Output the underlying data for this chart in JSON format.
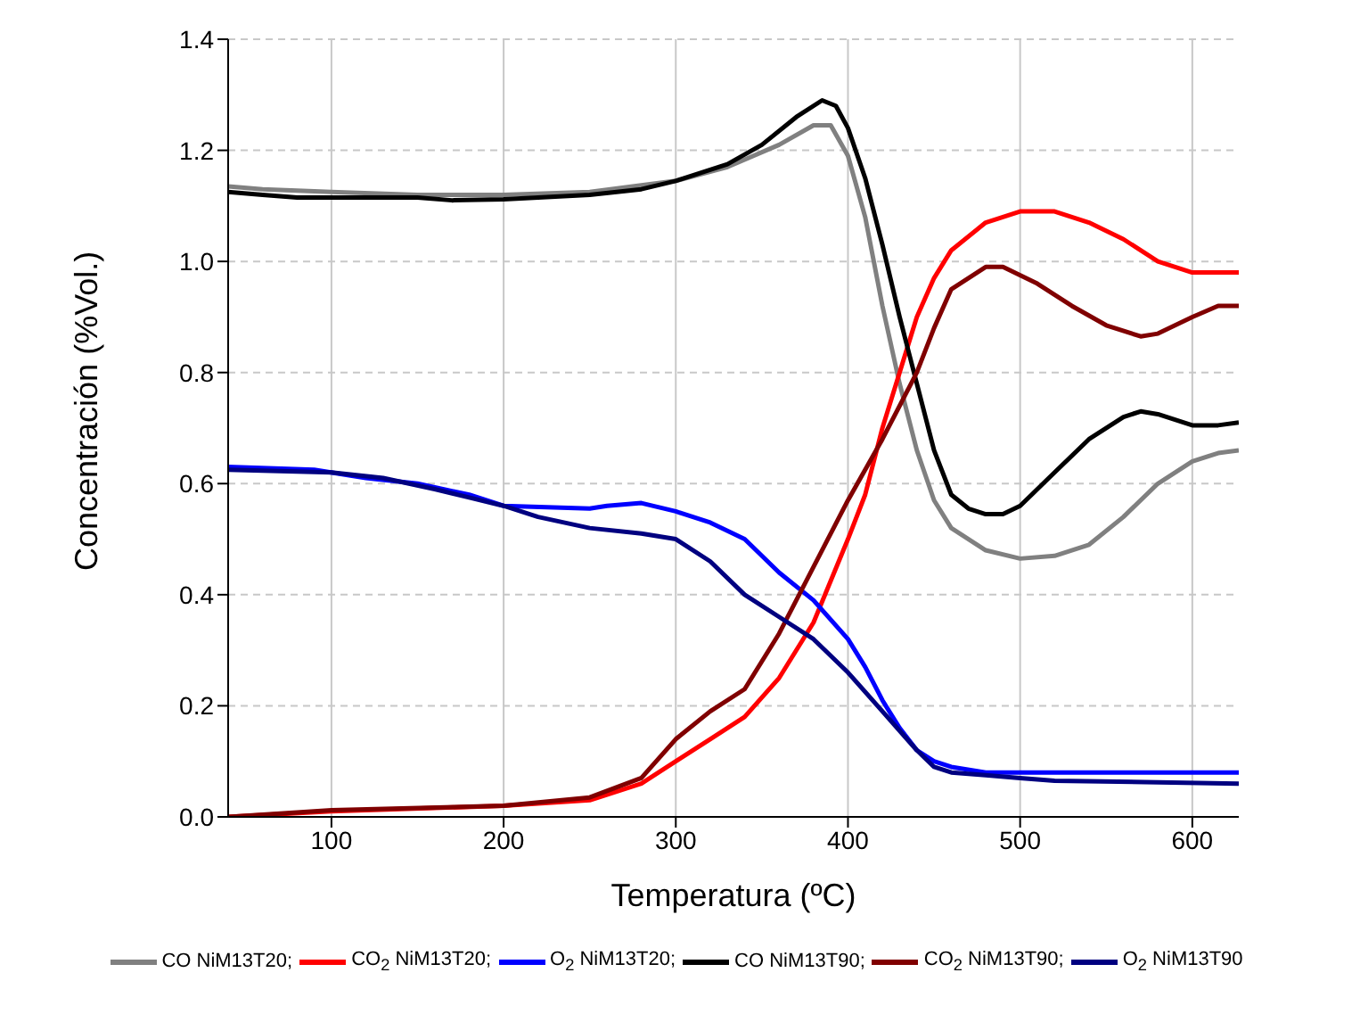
{
  "chart_data": {
    "type": "line",
    "xlabel": "Temperatura (ºC)",
    "ylabel": "Concentración (%Vol.)",
    "xlim": [
      40,
      627
    ],
    "xticks": [
      100,
      200,
      300,
      400,
      500,
      600
    ],
    "ylim": [
      0,
      1.4
    ],
    "yticks": [
      {
        "value": 0,
        "label": "0.0"
      },
      {
        "value": 0.2,
        "label": "0.2"
      },
      {
        "value": 0.4,
        "label": "0.4"
      },
      {
        "value": 0.6,
        "label": "0.6"
      },
      {
        "value": 0.8,
        "label": "0.8"
      },
      {
        "value": 1,
        "label": "1.0"
      },
      {
        "value": 1.2,
        "label": "1.2"
      },
      {
        "value": 1.4,
        "label": "1.4"
      }
    ],
    "grid": true,
    "legend": "bottom",
    "marker": "none",
    "line_style": "solid",
    "series": [
      {
        "name": "CO NiM13T20;",
        "color": "#808080",
        "x": [
          40,
          60,
          100,
          150,
          200,
          250,
          300,
          330,
          360,
          380,
          390,
          400,
          410,
          420,
          430,
          440,
          450,
          460,
          480,
          500,
          520,
          540,
          560,
          580,
          600,
          615,
          627
        ],
        "values": [
          1.135,
          1.13,
          1.125,
          1.12,
          1.12,
          1.125,
          1.145,
          1.17,
          1.21,
          1.245,
          1.245,
          1.19,
          1.08,
          0.92,
          0.78,
          0.66,
          0.57,
          0.52,
          0.48,
          0.465,
          0.47,
          0.49,
          0.54,
          0.6,
          0.64,
          0.655,
          0.66
        ]
      },
      {
        "name": "CO$_{2}$ NiM13T20;",
        "color": "#ff0000",
        "x": [
          40,
          100,
          200,
          250,
          280,
          300,
          320,
          340,
          360,
          380,
          400,
          410,
          420,
          430,
          440,
          450,
          460,
          480,
          500,
          520,
          540,
          560,
          580,
          600,
          627
        ],
        "values": [
          0,
          0.01,
          0.02,
          0.03,
          0.06,
          0.1,
          0.14,
          0.18,
          0.25,
          0.35,
          0.5,
          0.58,
          0.7,
          0.8,
          0.9,
          0.97,
          1.02,
          1.07,
          1.09,
          1.09,
          1.07,
          1.04,
          1,
          0.98,
          0.98
        ]
      },
      {
        "name": "O$_{2}$ NiM13T20;",
        "color": "#0000ff",
        "x": [
          40,
          90,
          120,
          150,
          180,
          200,
          250,
          260,
          280,
          300,
          320,
          340,
          360,
          380,
          400,
          410,
          420,
          430,
          440,
          450,
          460,
          480,
          627
        ],
        "values": [
          0.63,
          0.625,
          0.61,
          0.6,
          0.58,
          0.56,
          0.555,
          0.56,
          0.565,
          0.55,
          0.53,
          0.5,
          0.44,
          0.39,
          0.32,
          0.27,
          0.21,
          0.16,
          0.12,
          0.1,
          0.09,
          0.08,
          0.08
        ]
      },
      {
        "name": "CO NiM13T90;",
        "color": "#000000",
        "x": [
          40,
          60,
          80,
          100,
          150,
          170,
          200,
          250,
          280,
          300,
          330,
          350,
          370,
          385,
          393,
          400,
          410,
          420,
          430,
          440,
          450,
          460,
          470,
          480,
          490,
          500,
          520,
          540,
          560,
          570,
          580,
          600,
          615,
          627
        ],
        "values": [
          1.125,
          1.12,
          1.115,
          1.115,
          1.115,
          1.11,
          1.112,
          1.12,
          1.13,
          1.145,
          1.175,
          1.21,
          1.26,
          1.29,
          1.28,
          1.24,
          1.15,
          1.03,
          0.9,
          0.78,
          0.66,
          0.58,
          0.555,
          0.545,
          0.545,
          0.56,
          0.62,
          0.68,
          0.72,
          0.73,
          0.725,
          0.705,
          0.705,
          0.71
        ]
      },
      {
        "name": "CO$_{2}$ NiM13T90;",
        "color": "#800000",
        "x": [
          40,
          100,
          200,
          250,
          280,
          300,
          320,
          340,
          360,
          380,
          400,
          420,
          440,
          450,
          460,
          480,
          490,
          510,
          530,
          550,
          570,
          580,
          600,
          615,
          627
        ],
        "values": [
          0,
          0.012,
          0.02,
          0.035,
          0.07,
          0.14,
          0.19,
          0.23,
          0.33,
          0.45,
          0.57,
          0.68,
          0.8,
          0.88,
          0.95,
          0.99,
          0.99,
          0.96,
          0.92,
          0.885,
          0.865,
          0.87,
          0.9,
          0.92,
          0.92
        ]
      },
      {
        "name": "O$_{2}$ NiM13T90",
        "color": "#000080",
        "x": [
          40,
          100,
          130,
          160,
          180,
          200,
          220,
          250,
          280,
          300,
          320,
          340,
          360,
          380,
          400,
          420,
          440,
          450,
          460,
          480,
          500,
          520,
          627
        ],
        "values": [
          0.625,
          0.62,
          0.61,
          0.59,
          0.575,
          0.56,
          0.54,
          0.52,
          0.51,
          0.5,
          0.46,
          0.4,
          0.36,
          0.32,
          0.26,
          0.19,
          0.12,
          0.09,
          0.08,
          0.075,
          0.07,
          0.065,
          0.06
        ]
      }
    ]
  }
}
